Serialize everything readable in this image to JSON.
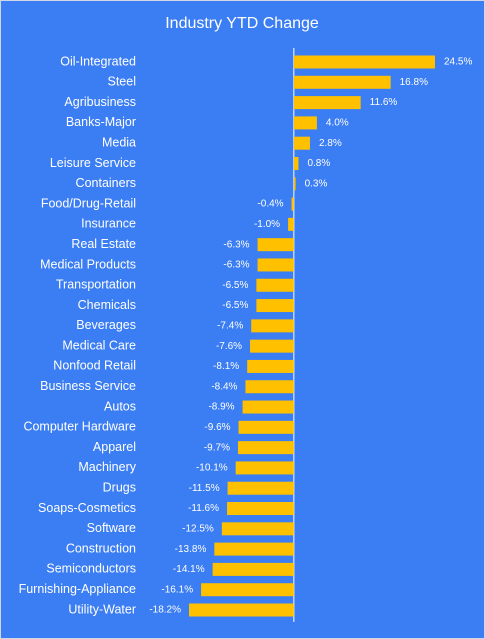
{
  "chart_data": {
    "type": "bar",
    "orientation": "horizontal",
    "title": "Industry YTD Change",
    "categories": [
      "Oil-Integrated",
      "Steel",
      "Agribusiness",
      "Banks-Major",
      "Media",
      "Leisure Service",
      "Containers",
      "Food/Drug-Retail",
      "Insurance",
      "Real Estate",
      "Medical Products",
      "Transportation",
      "Chemicals",
      "Beverages",
      "Medical Care",
      "Nonfood Retail",
      "Business Service",
      "Autos",
      "Computer Hardware",
      "Apparel",
      "Machinery",
      "Drugs",
      "Soaps-Cosmetics",
      "Software",
      "Construction",
      "Semiconductors",
      "Furnishing-Appliance",
      "Utility-Water"
    ],
    "values": [
      24.5,
      16.8,
      11.6,
      4.0,
      2.8,
      0.8,
      0.3,
      -0.4,
      -1.0,
      -6.3,
      -6.3,
      -6.5,
      -6.5,
      -7.4,
      -7.6,
      -8.1,
      -8.4,
      -8.9,
      -9.6,
      -9.7,
      -10.1,
      -11.5,
      -11.6,
      -12.5,
      -13.8,
      -14.1,
      -16.1,
      -18.2
    ],
    "value_labels": [
      "24.5%",
      "16.8%",
      "11.6%",
      "4.0%",
      "2.8%",
      "0.8%",
      "0.3%",
      "-0.4%",
      "-1.0%",
      "-6.3%",
      "-6.3%",
      "-6.5%",
      "-6.5%",
      "-7.4%",
      "-7.6%",
      "-8.1%",
      "-8.4%",
      "-8.9%",
      "-9.6%",
      "-9.7%",
      "-10.1%",
      "-11.5%",
      "-11.6%",
      "-12.5%",
      "-13.8%",
      "-14.1%",
      "-16.1%",
      "-18.2%"
    ],
    "color": "#ffc000"
  }
}
